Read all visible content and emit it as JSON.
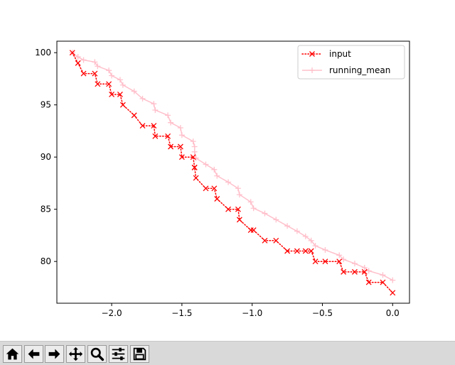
{
  "chart_data": {
    "type": "line",
    "title": "",
    "xlabel": "",
    "ylabel": "",
    "xlim": [
      -2.39,
      0.12
    ],
    "ylim": [
      76.0,
      101.1
    ],
    "xticks": [
      -2.0,
      -1.5,
      -1.0,
      -0.5,
      0.0
    ],
    "xtick_labels": [
      "−2.0",
      "−1.5",
      "−1.0",
      "−0.5",
      "0.0"
    ],
    "yticks": [
      80,
      85,
      90,
      95,
      100
    ],
    "ytick_labels": [
      "80",
      "85",
      "90",
      "95",
      "100"
    ],
    "grid": false,
    "legend_location": "upper right",
    "series": [
      {
        "name": "input",
        "color": "#ff0000",
        "linestyle": "dotted",
        "marker": "x",
        "x": [
          -2.28,
          -2.24,
          -2.2,
          -2.12,
          -2.1,
          -2.02,
          -2.0,
          -1.94,
          -1.92,
          -1.84,
          -1.78,
          -1.7,
          -1.69,
          -1.6,
          -1.58,
          -1.51,
          -1.5,
          -1.42,
          -1.41,
          -1.41,
          -1.4,
          -1.33,
          -1.27,
          -1.25,
          -1.17,
          -1.1,
          -1.09,
          -1.01,
          -0.99,
          -0.91,
          -0.83,
          -0.75,
          -0.68,
          -0.62,
          -0.58,
          -0.55,
          -0.48,
          -0.38,
          -0.35,
          -0.27,
          -0.2,
          -0.17,
          -0.07,
          0.0
        ],
        "y": [
          100,
          99,
          98,
          98,
          97,
          97,
          96,
          96,
          95,
          94,
          93,
          93,
          92,
          92,
          91,
          91,
          90,
          90,
          89,
          89,
          88,
          87,
          87,
          86,
          85,
          85,
          84,
          83,
          83,
          82,
          82,
          81,
          81,
          81,
          81,
          80,
          80,
          80,
          79,
          79,
          79,
          78,
          78,
          77
        ]
      },
      {
        "name": "running_mean",
        "color": "#ffc0cb",
        "linestyle": "solid",
        "marker": "+",
        "x": [
          -2.28,
          -2.24,
          -2.2,
          -2.12,
          -2.1,
          -2.02,
          -2.0,
          -1.94,
          -1.92,
          -1.84,
          -1.78,
          -1.7,
          -1.69,
          -1.6,
          -1.58,
          -1.51,
          -1.5,
          -1.42,
          -1.41,
          -1.41,
          -1.4,
          -1.33,
          -1.27,
          -1.25,
          -1.17,
          -1.1,
          -1.09,
          -1.01,
          -0.99,
          -0.91,
          -0.83,
          -0.75,
          -0.68,
          -0.62,
          -0.58,
          -0.55,
          -0.48,
          -0.38,
          -0.35,
          -0.27,
          -0.2,
          -0.17,
          -0.07,
          0.0
        ],
        "y": [
          100.0,
          99.6,
          99.3,
          99.1,
          98.7,
          98.3,
          97.8,
          97.4,
          96.9,
          96.3,
          95.6,
          95.1,
          94.5,
          94.0,
          93.3,
          92.8,
          92.1,
          91.5,
          91.0,
          90.5,
          89.9,
          89.3,
          88.8,
          88.2,
          87.6,
          87.0,
          86.4,
          85.7,
          85.1,
          84.6,
          84.0,
          83.4,
          82.9,
          82.4,
          82.0,
          81.5,
          81.1,
          80.6,
          80.2,
          79.8,
          79.4,
          79.1,
          78.7,
          78.2
        ]
      }
    ]
  },
  "toolbar": {
    "buttons": [
      {
        "name": "home-button",
        "icon": "home-icon"
      },
      {
        "name": "back-button",
        "icon": "arrow-left-icon"
      },
      {
        "name": "forward-button",
        "icon": "arrow-right-icon"
      },
      {
        "name": "pan-button",
        "icon": "move-icon"
      },
      {
        "name": "zoom-button",
        "icon": "magnifier-icon"
      },
      {
        "name": "configure-subplots-button",
        "icon": "sliders-icon"
      },
      {
        "name": "save-button",
        "icon": "floppy-disk-icon"
      }
    ]
  }
}
